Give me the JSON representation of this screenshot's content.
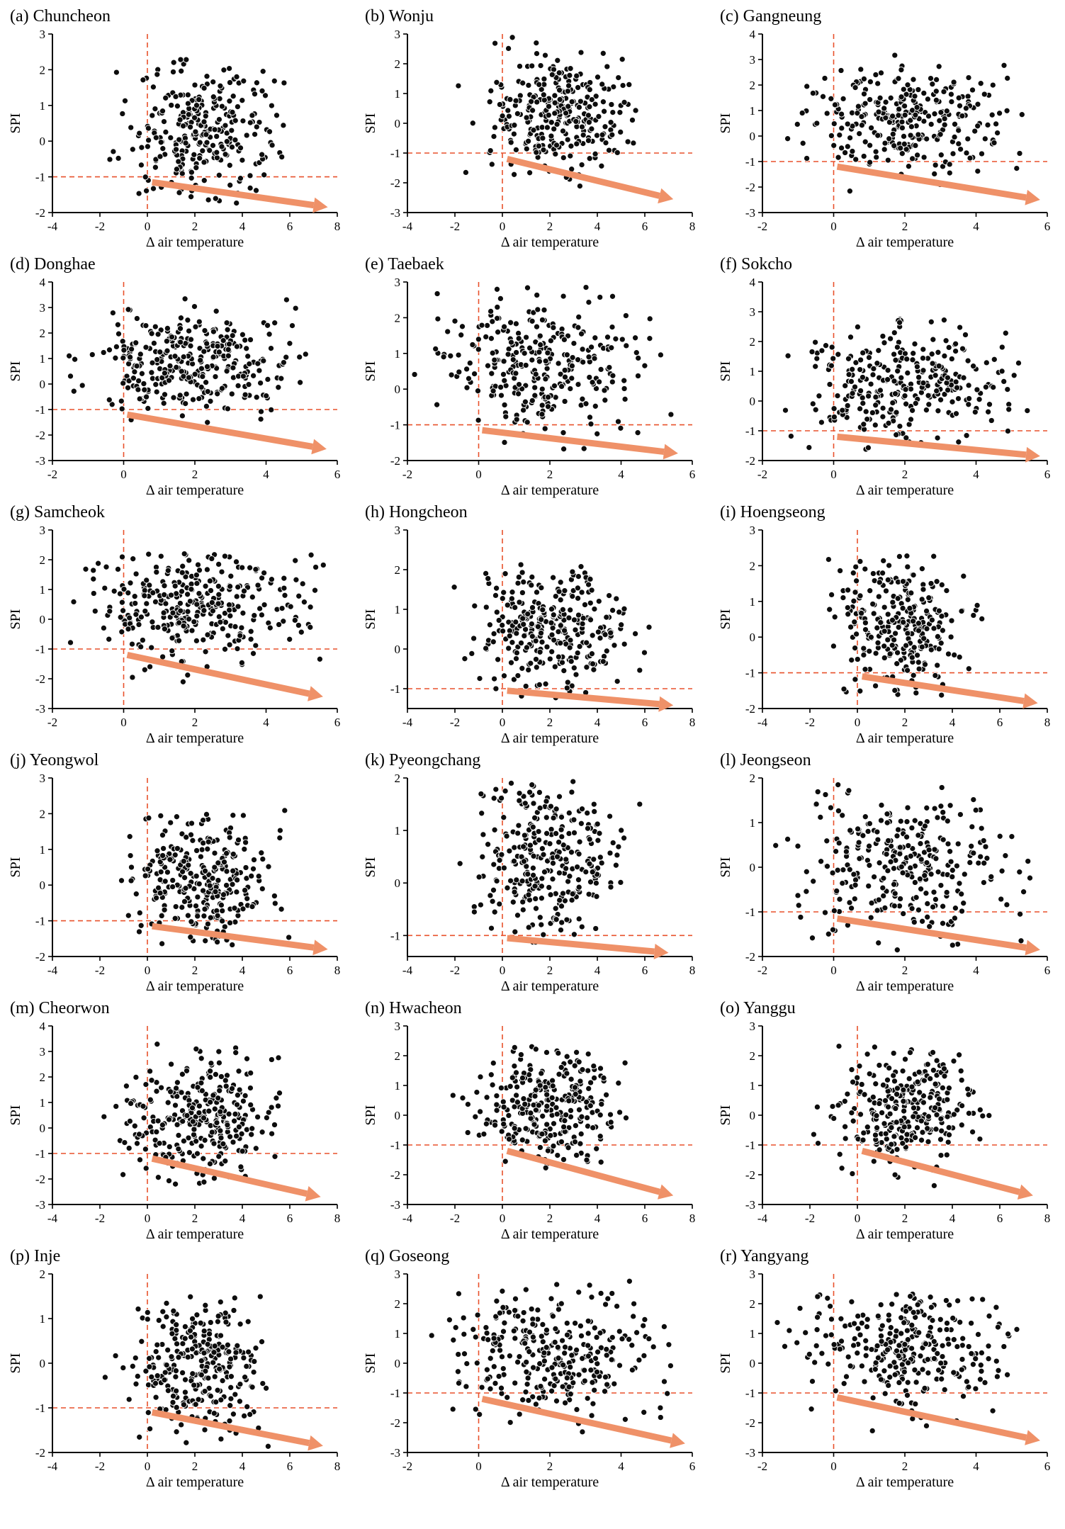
{
  "colors": {
    "point_fill": "#0d0d0d",
    "point_outline": "#ffffff",
    "dashed_line": "#e8512b",
    "arrow": "#ef9168",
    "axis": "#000000",
    "text": "#000000"
  },
  "chart_data": [
    {
      "id": "a",
      "type": "scatter",
      "title": "(a) Chuncheon",
      "xlabel": "Δ air temperature",
      "ylabel": "SPI",
      "xlim": [
        -4,
        8
      ],
      "ylim": [
        -2,
        3
      ],
      "xticks": [
        -4,
        -2,
        0,
        2,
        4,
        6,
        8
      ],
      "yticks": [
        -2,
        -1,
        0,
        1,
        2,
        3
      ],
      "vline_x": 0,
      "hline_y": -1,
      "arrow": {
        "x1": 0.2,
        "y1": -1.15,
        "x2": 7.6,
        "y2": -1.85
      },
      "points_distribution": {
        "center": [
          2.4,
          0.3
        ],
        "sd": [
          1.6,
          0.95
        ],
        "count": 290,
        "clip_x": [
          -2.6,
          6.6
        ],
        "clip_y": [
          -1.85,
          2.55
        ],
        "seed": 1
      }
    },
    {
      "id": "b",
      "type": "scatter",
      "title": "(b) Wonju",
      "xlabel": "Δ air temperature",
      "ylabel": "SPI",
      "xlim": [
        -4,
        8
      ],
      "ylim": [
        -3,
        3
      ],
      "xticks": [
        -4,
        -2,
        0,
        2,
        4,
        6,
        8
      ],
      "yticks": [
        -3,
        -2,
        -1,
        0,
        1,
        2,
        3
      ],
      "vline_x": 0,
      "hline_y": -1,
      "arrow": {
        "x1": 0.2,
        "y1": -1.2,
        "x2": 7.2,
        "y2": -2.55
      },
      "points_distribution": {
        "center": [
          2.2,
          0.4
        ],
        "sd": [
          1.5,
          1.0
        ],
        "count": 300,
        "clip_x": [
          -2.2,
          6.5
        ],
        "clip_y": [
          -2.55,
          2.9
        ],
        "seed": 2
      }
    },
    {
      "id": "c",
      "type": "scatter",
      "title": "(c) Gangneung",
      "xlabel": "Δ air temperature",
      "ylabel": "SPI",
      "xlim": [
        -2,
        6
      ],
      "ylim": [
        -3,
        4
      ],
      "xticks": [
        -2,
        0,
        2,
        4,
        6
      ],
      "yticks": [
        -3,
        -2,
        -1,
        0,
        1,
        2,
        3,
        4
      ],
      "vline_x": 0,
      "hline_y": -1,
      "arrow": {
        "x1": 0.1,
        "y1": -1.2,
        "x2": 5.8,
        "y2": -2.5
      },
      "points_distribution": {
        "center": [
          2.0,
          0.7
        ],
        "sd": [
          1.4,
          1.0
        ],
        "count": 300,
        "clip_x": [
          -1.8,
          5.6
        ],
        "clip_y": [
          -2.5,
          3.2
        ],
        "seed": 3
      }
    },
    {
      "id": "d",
      "type": "scatter",
      "title": "(d) Donghae",
      "xlabel": "Δ air temperature",
      "ylabel": "SPI",
      "xlim": [
        -2,
        6
      ],
      "ylim": [
        -3,
        4
      ],
      "xticks": [
        -2,
        0,
        2,
        4,
        6
      ],
      "yticks": [
        -3,
        -2,
        -1,
        0,
        1,
        2,
        3,
        4
      ],
      "vline_x": 0,
      "hline_y": -1,
      "arrow": {
        "x1": 0.1,
        "y1": -1.2,
        "x2": 5.7,
        "y2": -2.55
      },
      "points_distribution": {
        "center": [
          1.9,
          0.8
        ],
        "sd": [
          1.35,
          1.1
        ],
        "count": 320,
        "clip_x": [
          -1.8,
          5.6
        ],
        "clip_y": [
          -2.7,
          3.5
        ],
        "seed": 4
      }
    },
    {
      "id": "e",
      "type": "scatter",
      "title": "(e) Taebaek",
      "xlabel": "Δ air temperature",
      "ylabel": "SPI",
      "xlim": [
        -2,
        6
      ],
      "ylim": [
        -2,
        3
      ],
      "xticks": [
        -2,
        0,
        2,
        4,
        6
      ],
      "yticks": [
        -2,
        -1,
        0,
        1,
        2,
        3
      ],
      "vline_x": 0,
      "hline_y": -1,
      "arrow": {
        "x1": 0.1,
        "y1": -1.15,
        "x2": 5.6,
        "y2": -1.8
      },
      "points_distribution": {
        "center": [
          1.7,
          0.7
        ],
        "sd": [
          1.4,
          1.0
        ],
        "count": 300,
        "clip_x": [
          -1.9,
          5.6
        ],
        "clip_y": [
          -1.85,
          2.85
        ],
        "seed": 5
      }
    },
    {
      "id": "f",
      "type": "scatter",
      "title": "(f) Sokcho",
      "xlabel": "Δ air temperature",
      "ylabel": "SPI",
      "xlim": [
        -2,
        6
      ],
      "ylim": [
        -2,
        4
      ],
      "xticks": [
        -2,
        0,
        2,
        4,
        6
      ],
      "yticks": [
        -2,
        -1,
        0,
        1,
        2,
        3,
        4
      ],
      "vline_x": 0,
      "hline_y": -1,
      "arrow": {
        "x1": 0.1,
        "y1": -1.2,
        "x2": 5.8,
        "y2": -1.85
      },
      "points_distribution": {
        "center": [
          2.1,
          0.7
        ],
        "sd": [
          1.4,
          1.0
        ],
        "count": 300,
        "clip_x": [
          -1.9,
          5.7
        ],
        "clip_y": [
          -1.9,
          2.8
        ],
        "seed": 6
      }
    },
    {
      "id": "g",
      "type": "scatter",
      "title": "(g) Samcheok",
      "xlabel": "Δ air temperature",
      "ylabel": "SPI",
      "xlim": [
        -2,
        6
      ],
      "ylim": [
        -3,
        3
      ],
      "xticks": [
        -2,
        0,
        2,
        4,
        6
      ],
      "yticks": [
        -3,
        -2,
        -1,
        0,
        1,
        2,
        3
      ],
      "vline_x": 0,
      "hline_y": -1,
      "arrow": {
        "x1": 0.1,
        "y1": -1.2,
        "x2": 5.6,
        "y2": -2.6
      },
      "points_distribution": {
        "center": [
          2.1,
          0.5
        ],
        "sd": [
          1.4,
          1.0
        ],
        "count": 320,
        "clip_x": [
          -1.9,
          5.7
        ],
        "clip_y": [
          -2.2,
          2.2
        ],
        "seed": 7
      }
    },
    {
      "id": "h",
      "type": "scatter",
      "title": "(h) Hongcheon",
      "xlabel": "Δ air temperature",
      "ylabel": "SPI",
      "xlim": [
        -4,
        8
      ],
      "ylim": [
        -1.5,
        3
      ],
      "xticks": [
        -4,
        -2,
        0,
        2,
        4,
        6,
        8
      ],
      "yticks": [
        -1,
        0,
        1,
        2,
        3
      ],
      "vline_x": 0,
      "hline_y": -1,
      "arrow": {
        "x1": 0.2,
        "y1": -1.05,
        "x2": 7.2,
        "y2": -1.42
      },
      "points_distribution": {
        "center": [
          2.0,
          0.5
        ],
        "sd": [
          1.5,
          0.8
        ],
        "count": 300,
        "clip_x": [
          -2.2,
          6.6
        ],
        "clip_y": [
          -1.3,
          2.2
        ],
        "seed": 8
      }
    },
    {
      "id": "i",
      "type": "scatter",
      "title": "(i) Hoengseong",
      "xlabel": "Δ air temperature",
      "ylabel": "SPI",
      "xlim": [
        -4,
        8
      ],
      "ylim": [
        -2,
        3
      ],
      "xticks": [
        -4,
        -2,
        0,
        2,
        4,
        6,
        8
      ],
      "yticks": [
        -2,
        -1,
        0,
        1,
        2,
        3
      ],
      "vline_x": 0,
      "hline_y": -1,
      "arrow": {
        "x1": 0.2,
        "y1": -1.1,
        "x2": 7.6,
        "y2": -1.85
      },
      "points_distribution": {
        "center": [
          1.8,
          0.4
        ],
        "sd": [
          1.3,
          0.9
        ],
        "count": 270,
        "clip_x": [
          -2.6,
          6.4
        ],
        "clip_y": [
          -1.7,
          2.35
        ],
        "seed": 9
      }
    },
    {
      "id": "j",
      "type": "scatter",
      "title": "(j) Yeongwol",
      "xlabel": "Δ air temperature",
      "ylabel": "SPI",
      "xlim": [
        -4,
        8
      ],
      "ylim": [
        -2,
        3
      ],
      "xticks": [
        -4,
        -2,
        0,
        2,
        4,
        6,
        8
      ],
      "yticks": [
        -2,
        -1,
        0,
        1,
        2,
        3
      ],
      "vline_x": 0,
      "hline_y": -1,
      "arrow": {
        "x1": 0.2,
        "y1": -1.15,
        "x2": 7.6,
        "y2": -1.8
      },
      "points_distribution": {
        "center": [
          2.2,
          0.2
        ],
        "sd": [
          1.4,
          0.9
        ],
        "count": 300,
        "clip_x": [
          -2.4,
          6.5
        ],
        "clip_y": [
          -1.75,
          2.2
        ],
        "seed": 10
      }
    },
    {
      "id": "k",
      "type": "scatter",
      "title": "(k) Pyeongchang",
      "xlabel": "Δ air temperature",
      "ylabel": "SPI",
      "xlim": [
        -4,
        8
      ],
      "ylim": [
        -1.4,
        2
      ],
      "xticks": [
        -4,
        -2,
        0,
        2,
        4,
        6,
        8
      ],
      "yticks": [
        -1,
        0,
        1,
        2
      ],
      "vline_x": 0,
      "hline_y": -1,
      "arrow": {
        "x1": 0.2,
        "y1": -1.05,
        "x2": 7.0,
        "y2": -1.33
      },
      "points_distribution": {
        "center": [
          2.0,
          0.4
        ],
        "sd": [
          1.4,
          0.72
        ],
        "count": 290,
        "clip_x": [
          -2.2,
          6.4
        ],
        "clip_y": [
          -1.15,
          2.0
        ],
        "seed": 11
      }
    },
    {
      "id": "l",
      "type": "scatter",
      "title": "(l) Jeongseon",
      "xlabel": "Δ air temperature",
      "ylabel": "SPI",
      "xlim": [
        -2,
        6
      ],
      "ylim": [
        -2,
        2
      ],
      "xticks": [
        -2,
        0,
        2,
        4,
        6
      ],
      "yticks": [
        -2,
        -1,
        0,
        1,
        2
      ],
      "vline_x": 0,
      "hline_y": -1,
      "arrow": {
        "x1": 0.1,
        "y1": -1.15,
        "x2": 5.8,
        "y2": -1.85
      },
      "points_distribution": {
        "center": [
          2.0,
          0.1
        ],
        "sd": [
          1.5,
          0.9
        ],
        "count": 290,
        "clip_x": [
          -1.8,
          5.7
        ],
        "clip_y": [
          -1.9,
          1.85
        ],
        "seed": 12
      }
    },
    {
      "id": "m",
      "type": "scatter",
      "title": "(m) Cheorwon",
      "xlabel": "Δ air temperature",
      "ylabel": "SPI",
      "xlim": [
        -4,
        8
      ],
      "ylim": [
        -3,
        4
      ],
      "xticks": [
        -4,
        -2,
        0,
        2,
        4,
        6,
        8
      ],
      "yticks": [
        -3,
        -2,
        -1,
        0,
        1,
        2,
        3,
        4
      ],
      "vline_x": 0,
      "hline_y": -1,
      "arrow": {
        "x1": 0.2,
        "y1": -1.2,
        "x2": 7.3,
        "y2": -2.7
      },
      "points_distribution": {
        "center": [
          2.1,
          0.4
        ],
        "sd": [
          1.5,
          1.15
        ],
        "count": 300,
        "clip_x": [
          -2.8,
          6.6
        ],
        "clip_y": [
          -2.4,
          3.3
        ],
        "seed": 13
      }
    },
    {
      "id": "n",
      "type": "scatter",
      "title": "(n) Hwacheon",
      "xlabel": "Δ air temperature",
      "ylabel": "SPI",
      "xlim": [
        -4,
        8
      ],
      "ylim": [
        -3,
        3
      ],
      "xticks": [
        -4,
        -2,
        0,
        2,
        4,
        6,
        8
      ],
      "yticks": [
        -3,
        -2,
        -1,
        0,
        1,
        2,
        3
      ],
      "vline_x": 0,
      "hline_y": -1,
      "arrow": {
        "x1": 0.2,
        "y1": -1.2,
        "x2": 7.2,
        "y2": -2.7
      },
      "points_distribution": {
        "center": [
          2.0,
          0.3
        ],
        "sd": [
          1.4,
          0.95
        ],
        "count": 290,
        "clip_x": [
          -2.6,
          6.4
        ],
        "clip_y": [
          -2.4,
          2.5
        ],
        "seed": 14
      }
    },
    {
      "id": "o",
      "type": "scatter",
      "title": "(o) Yanggu",
      "xlabel": "Δ air temperature",
      "ylabel": "SPI",
      "xlim": [
        -4,
        8
      ],
      "ylim": [
        -3,
        3
      ],
      "xticks": [
        -4,
        -2,
        0,
        2,
        4,
        6,
        8
      ],
      "yticks": [
        -3,
        -2,
        -1,
        0,
        1,
        2,
        3
      ],
      "vline_x": 0,
      "hline_y": -1,
      "arrow": {
        "x1": 0.2,
        "y1": -1.2,
        "x2": 7.4,
        "y2": -2.7
      },
      "points_distribution": {
        "center": [
          2.1,
          0.2
        ],
        "sd": [
          1.4,
          0.95
        ],
        "count": 290,
        "clip_x": [
          -2.4,
          6.5
        ],
        "clip_y": [
          -2.6,
          2.4
        ],
        "seed": 15
      }
    },
    {
      "id": "p",
      "type": "scatter",
      "title": "(p) Inje",
      "xlabel": "Δ air temperature",
      "ylabel": "SPI",
      "xlim": [
        -4,
        8
      ],
      "ylim": [
        -2,
        2
      ],
      "xticks": [
        -4,
        -2,
        0,
        2,
        4,
        6,
        8
      ],
      "yticks": [
        -2,
        -1,
        0,
        1,
        2
      ],
      "vline_x": 0,
      "hline_y": -1,
      "arrow": {
        "x1": 0.2,
        "y1": -1.1,
        "x2": 7.4,
        "y2": -1.85
      },
      "points_distribution": {
        "center": [
          2.2,
          -0.1
        ],
        "sd": [
          1.4,
          0.72
        ],
        "count": 290,
        "clip_x": [
          -2.4,
          6.5
        ],
        "clip_y": [
          -1.9,
          1.5
        ],
        "seed": 16
      }
    },
    {
      "id": "q",
      "type": "scatter",
      "title": "(q) Goseong",
      "xlabel": "Δ air temperature",
      "ylabel": "SPI",
      "xlim": [
        -2,
        6
      ],
      "ylim": [
        -3,
        3
      ],
      "xticks": [
        -2,
        0,
        2,
        4,
        6
      ],
      "yticks": [
        -3,
        -2,
        -1,
        0,
        1,
        2,
        3
      ],
      "vline_x": 0,
      "hline_y": -1,
      "arrow": {
        "x1": 0.1,
        "y1": -1.2,
        "x2": 5.8,
        "y2": -2.7
      },
      "points_distribution": {
        "center": [
          2.1,
          0.4
        ],
        "sd": [
          1.5,
          1.05
        ],
        "count": 300,
        "clip_x": [
          -1.9,
          5.7
        ],
        "clip_y": [
          -2.6,
          2.8
        ],
        "seed": 17
      }
    },
    {
      "id": "r",
      "type": "scatter",
      "title": "(r) Yangyang",
      "xlabel": "Δ air temperature",
      "ylabel": "SPI",
      "xlim": [
        -2,
        6
      ],
      "ylim": [
        -3,
        3
      ],
      "xticks": [
        -2,
        0,
        2,
        4,
        6
      ],
      "yticks": [
        -3,
        -2,
        -1,
        0,
        1,
        2,
        3
      ],
      "vline_x": 0,
      "hline_y": -1,
      "arrow": {
        "x1": 0.1,
        "y1": -1.15,
        "x2": 5.8,
        "y2": -2.6
      },
      "points_distribution": {
        "center": [
          1.9,
          0.6
        ],
        "sd": [
          1.4,
          1.0
        ],
        "count": 290,
        "clip_x": [
          -1.8,
          5.7
        ],
        "clip_y": [
          -2.7,
          2.4
        ],
        "seed": 18
      }
    }
  ]
}
